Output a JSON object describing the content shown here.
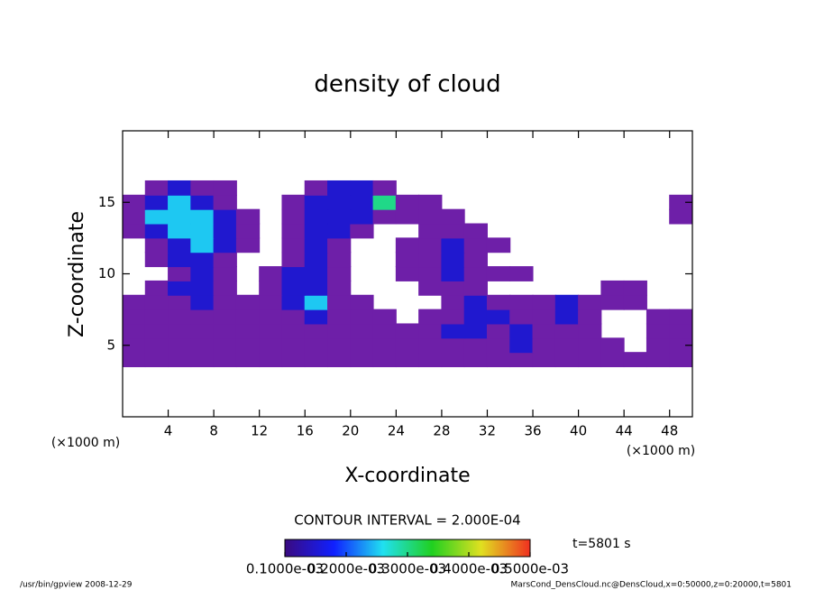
{
  "chart_data": {
    "type": "contour",
    "title": "density of cloud",
    "xlabel": "X-coordinate",
    "ylabel": "Z-coordinate",
    "unit_label": "(×1000 m)",
    "contour_note": "CONTOUR INTERVAL = 2.000E-04",
    "time_label": "t=5801 s",
    "footer_left": "/usr/bin/gpview   2008-12-29",
    "footer_right": "MarsCond_DensCloud.nc@DensCloud,x=0:50000,z=0:20000,t=5801",
    "xlim": [
      0,
      50
    ],
    "xticks": [
      4,
      8,
      12,
      16,
      20,
      24,
      28,
      32,
      36,
      40,
      44,
      48
    ],
    "ylim": [
      0,
      20
    ],
    "yticks": [
      5,
      10,
      15
    ],
    "clim": [
      0.0001,
      0.0005
    ],
    "cticks": [
      {
        "value": 0.0001,
        "label": "0.1000e-03"
      },
      {
        "value": 0.0002,
        "label": "0.2000e-03"
      },
      {
        "value": 0.0003,
        "label": "0.3000e-03"
      },
      {
        "value": 0.0004,
        "label": "0.4000e-03"
      },
      {
        "value": 0.0005,
        "label": "0.5000e-03"
      }
    ],
    "x": [
      1,
      3,
      5,
      7,
      9,
      11,
      13,
      15,
      17,
      19,
      21,
      23,
      25,
      27,
      29,
      31,
      33,
      35,
      37,
      39,
      41,
      43,
      45,
      47,
      49
    ],
    "z": [
      4,
      5,
      6,
      7,
      8,
      9,
      10,
      11,
      12,
      13,
      14,
      15,
      16
    ],
    "values": [
      [
        5e-05,
        5e-05,
        5e-05,
        5e-05,
        5e-05,
        5e-05,
        5e-05,
        5e-05,
        5e-05,
        5e-05,
        5e-05,
        5e-05,
        5e-05,
        5e-05,
        5e-05,
        5e-05,
        5e-05,
        5e-05,
        5e-05,
        5e-05,
        5e-05,
        5e-05,
        5e-05,
        5e-05,
        5e-05
      ],
      [
        5e-05,
        5e-05,
        5e-05,
        5e-05,
        5e-05,
        5e-05,
        5e-05,
        5e-05,
        5e-05,
        5e-05,
        5e-05,
        5e-05,
        5e-05,
        5e-05,
        5e-05,
        5e-05,
        5e-05,
        0.00015,
        5e-05,
        5e-05,
        5e-05,
        5e-05,
        null,
        5e-05,
        5e-05
      ],
      [
        5e-05,
        5e-05,
        5e-05,
        5e-05,
        5e-05,
        5e-05,
        5e-05,
        5e-05,
        5e-05,
        5e-05,
        5e-05,
        5e-05,
        5e-05,
        5e-05,
        0.00015,
        0.00015,
        5e-05,
        0.00015,
        5e-05,
        5e-05,
        5e-05,
        null,
        null,
        5e-05,
        5e-05
      ],
      [
        5e-05,
        5e-05,
        5e-05,
        5e-05,
        5e-05,
        5e-05,
        5e-05,
        5e-05,
        0.00015,
        5e-05,
        5e-05,
        5e-05,
        null,
        5e-05,
        5e-05,
        0.00015,
        0.00015,
        5e-05,
        5e-05,
        0.00015,
        5e-05,
        null,
        null,
        5e-05,
        5e-05
      ],
      [
        5e-05,
        5e-05,
        5e-05,
        0.00015,
        5e-05,
        5e-05,
        5e-05,
        0.00015,
        0.00025,
        5e-05,
        5e-05,
        null,
        null,
        null,
        5e-05,
        0.00015,
        5e-05,
        5e-05,
        5e-05,
        0.00015,
        5e-05,
        5e-05,
        5e-05,
        null,
        null
      ],
      [
        null,
        5e-05,
        0.00015,
        0.00015,
        5e-05,
        null,
        5e-05,
        0.00015,
        0.00015,
        5e-05,
        null,
        null,
        null,
        5e-05,
        5e-05,
        5e-05,
        null,
        null,
        null,
        null,
        null,
        5e-05,
        5e-05,
        null,
        null
      ],
      [
        null,
        null,
        5e-05,
        0.00015,
        5e-05,
        null,
        5e-05,
        0.00015,
        0.00015,
        5e-05,
        null,
        null,
        5e-05,
        5e-05,
        0.00015,
        5e-05,
        5e-05,
        5e-05,
        null,
        null,
        null,
        null,
        null,
        null,
        null
      ],
      [
        null,
        5e-05,
        0.00015,
        0.00015,
        5e-05,
        null,
        null,
        5e-05,
        0.00015,
        5e-05,
        null,
        null,
        5e-05,
        5e-05,
        0.00015,
        5e-05,
        null,
        null,
        null,
        null,
        null,
        null,
        null,
        null,
        null
      ],
      [
        null,
        5e-05,
        0.00015,
        0.00025,
        0.00015,
        5e-05,
        null,
        5e-05,
        0.00015,
        5e-05,
        null,
        null,
        5e-05,
        5e-05,
        0.00015,
        5e-05,
        5e-05,
        null,
        null,
        null,
        null,
        null,
        null,
        null,
        null
      ],
      [
        5e-05,
        0.00015,
        0.00025,
        0.00025,
        0.00015,
        5e-05,
        null,
        5e-05,
        0.00015,
        0.00015,
        5e-05,
        null,
        null,
        5e-05,
        5e-05,
        5e-05,
        null,
        null,
        null,
        null,
        null,
        null,
        null,
        null,
        null
      ],
      [
        5e-05,
        0.00025,
        0.00025,
        0.00025,
        0.00015,
        5e-05,
        null,
        5e-05,
        0.00015,
        0.00015,
        0.00015,
        5e-05,
        5e-05,
        5e-05,
        5e-05,
        null,
        null,
        null,
        null,
        null,
        null,
        null,
        null,
        null,
        5e-05
      ],
      [
        5e-05,
        0.00015,
        0.00025,
        0.00015,
        5e-05,
        null,
        null,
        5e-05,
        0.00015,
        0.00015,
        0.00015,
        0.0003,
        5e-05,
        5e-05,
        null,
        null,
        null,
        null,
        null,
        null,
        null,
        null,
        null,
        null,
        5e-05
      ],
      [
        null,
        5e-05,
        0.00015,
        5e-05,
        5e-05,
        null,
        null,
        null,
        5e-05,
        0.00015,
        0.00015,
        5e-05,
        null,
        null,
        null,
        null,
        null,
        null,
        null,
        null,
        null,
        null,
        null,
        null,
        null
      ]
    ]
  }
}
